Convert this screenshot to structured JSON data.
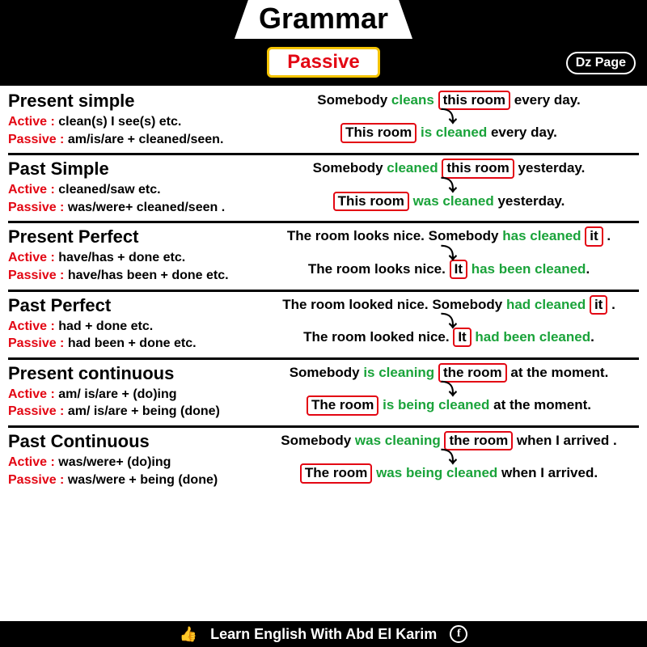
{
  "header": {
    "title": "Grammar",
    "subtitle": "Passive",
    "badge": "Dz Page"
  },
  "colors": {
    "accent_red": "#e30613",
    "green": "#1aa33a",
    "yellow_border": "#f5c400",
    "black": "#000000",
    "white": "#ffffff"
  },
  "sections": [
    {
      "tense": "Present simple",
      "active_rule": "clean(s) I see(s) etc.",
      "passive_rule": "am/is/are + cleaned/seen.",
      "line1_pre": "Somebody ",
      "line1_verb": "cleans",
      "line1_box": "this room",
      "line1_post": " every day.",
      "line2_box": "This room",
      "line2_verb": " is cleaned ",
      "line2_post": "every day."
    },
    {
      "tense": "Past Simple",
      "active_rule": "cleaned/saw etc.",
      "passive_rule": "was/were+ cleaned/seen .",
      "line1_pre": "Somebody ",
      "line1_verb": "cleaned",
      "line1_box": "this room",
      "line1_post": " yesterday.",
      "line2_box": "This room",
      "line2_verb": " was cleaned ",
      "line2_post": "yesterday."
    },
    {
      "tense": "Present Perfect",
      "active_rule": "have/has + done etc.",
      "passive_rule": "have/has been + done etc.",
      "line1_pre": "The room looks nice. Somebody ",
      "line1_verb": "has cleaned",
      "line1_box": "it",
      "line1_post": " .",
      "line2_pre": "The room looks nice. ",
      "line2_box": "It",
      "line2_verb": " has been cleaned",
      "line2_post": "."
    },
    {
      "tense": "Past Perfect",
      "active_rule": "had + done etc.",
      "passive_rule": "had been + done etc.",
      "line1_pre": "The room looked nice. Somebody ",
      "line1_verb": "had cleaned",
      "line1_box": "it",
      "line1_post": " .",
      "line2_pre": "The room looked nice. ",
      "line2_box": "It",
      "line2_verb": " had been cleaned",
      "line2_post": "."
    },
    {
      "tense": "Present continuous",
      "active_rule": "am/ is/are + (do)ing",
      "passive_rule": "am/ is/are + being (done)",
      "line1_pre": "Somebody ",
      "line1_verb": "is cleaning",
      "line1_box": "the room",
      "line1_post": " at the moment.",
      "line2_box": "The room",
      "line2_verb": " is being cleaned ",
      "line2_post": "at the moment."
    },
    {
      "tense": "Past Continuous",
      "active_rule": "was/were+ (do)ing",
      "passive_rule": "was/were + being (done)",
      "line1_pre": "Somebody ",
      "line1_verb": "was cleaning",
      "line1_box": "the room",
      "line1_post": " when I arrived .",
      "line2_box": "The room",
      "line2_verb": " was being cleaned ",
      "line2_post": "when I arrived."
    }
  ],
  "labels": {
    "active": "Active : ",
    "passive": "Passive : "
  },
  "footer": {
    "text": "Learn English With Abd El Karim",
    "thumb": "👍",
    "fb": "f"
  }
}
